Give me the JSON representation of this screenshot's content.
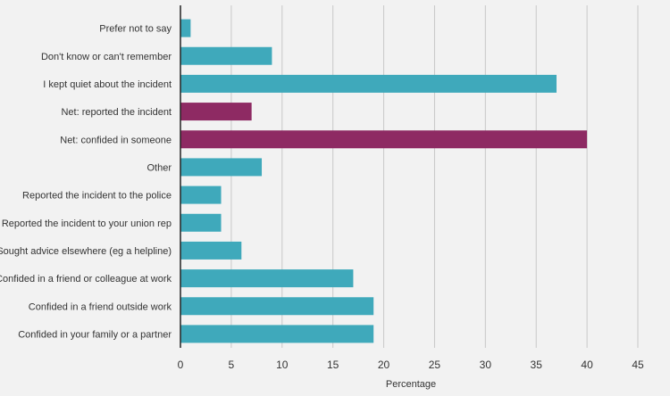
{
  "chart_data": {
    "type": "bar",
    "orientation": "horizontal",
    "xlabel": "Percentage",
    "xlim": [
      0,
      45
    ],
    "xticks": [
      0,
      5,
      10,
      15,
      20,
      25,
      30,
      35,
      40,
      45
    ],
    "grid": "vertical",
    "colors": {
      "default": "#3fa9bb",
      "net": "#8e2a63"
    },
    "bars": [
      {
        "label": "Prefer not to say",
        "value": 1,
        "group": "default"
      },
      {
        "label": "Don't know or can't remember",
        "value": 9,
        "group": "default"
      },
      {
        "label": "I kept quiet about the incident",
        "value": 37,
        "group": "default"
      },
      {
        "label": "Net: reported the incident",
        "value": 7,
        "group": "net"
      },
      {
        "label": "Net: confided in someone",
        "value": 40,
        "group": "net"
      },
      {
        "label": "Other",
        "value": 8,
        "group": "default"
      },
      {
        "label": "Reported the incident to the police",
        "value": 4,
        "group": "default"
      },
      {
        "label": "Reported the incident to your union rep",
        "value": 4,
        "group": "default"
      },
      {
        "label": "Sought advice elsewhere (eg a helpline)",
        "value": 6,
        "group": "default"
      },
      {
        "label": "Confided in a friend or colleague at work",
        "value": 17,
        "group": "default"
      },
      {
        "label": "Confided in a friend outside work",
        "value": 19,
        "group": "default"
      },
      {
        "label": "Confided in your family or a partner",
        "value": 19,
        "group": "default"
      }
    ]
  }
}
